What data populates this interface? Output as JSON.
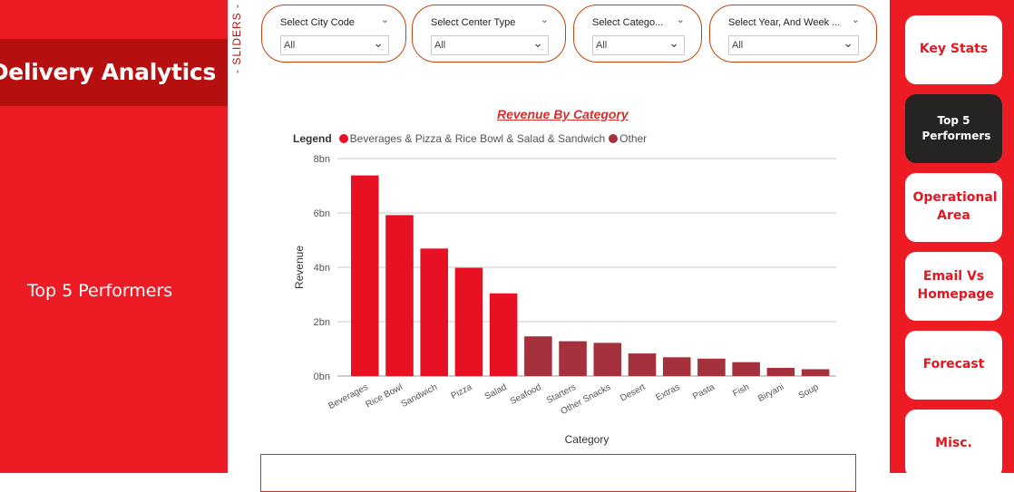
{
  "left_panel": {
    "app_title": "od Delivery Analytics",
    "page_label": "Top 5 Performers"
  },
  "sliders_label": "- SLIDERS -",
  "slicers": [
    {
      "label": "Select City Code",
      "value": "All"
    },
    {
      "label": "Select Center Type",
      "value": "All"
    },
    {
      "label": "Select Catego...",
      "value": "All"
    },
    {
      "label": "Select Year, And Week ...",
      "value": "All"
    }
  ],
  "nav": [
    {
      "label": "Key Stats",
      "active": false
    },
    {
      "label": "Top 5 Performers",
      "active": true
    },
    {
      "label": "Operational Area",
      "active": false
    },
    {
      "label": "Email Vs Homepage",
      "active": false
    },
    {
      "label": "Forecast",
      "active": false
    },
    {
      "label": "Misc.",
      "active": false
    }
  ],
  "colors": {
    "primary_red": "#ed1c24",
    "dark_red": "#b5100f",
    "other_series": "#a4313c",
    "top_series": "#e81123",
    "active_nav": "#252423"
  },
  "chart_data": {
    "type": "bar",
    "title": "Revenue By Category",
    "xlabel": "Category",
    "ylabel": "Revenue",
    "legend_title": "Legend",
    "legend_position": "top-left",
    "ylim": [
      0,
      8000000000
    ],
    "yticks": [
      0,
      2000000000,
      4000000000,
      6000000000,
      8000000000
    ],
    "ytick_labels": [
      "0bn",
      "2bn",
      "4bn",
      "6bn",
      "8bn"
    ],
    "grid": true,
    "categories": [
      "Beverages",
      "Rice Bowl",
      "Sandwich",
      "Pizza",
      "Salad",
      "Seafood",
      "Starters",
      "Other Snacks",
      "Desert",
      "Extras",
      "Pasta",
      "Fish",
      "Biryani",
      "Soup"
    ],
    "series": [
      {
        "name": "Beverages & Pizza & Rice Bowl & Salad & Sandwich",
        "color": "#e81123",
        "values": [
          7380000000,
          5920000000,
          4690000000,
          3980000000,
          3040000000,
          null,
          null,
          null,
          null,
          null,
          null,
          null,
          null,
          null
        ]
      },
      {
        "name": "Other",
        "color": "#a4313c",
        "values": [
          null,
          null,
          null,
          null,
          null,
          1460000000,
          1280000000,
          1220000000,
          830000000,
          690000000,
          640000000,
          510000000,
          300000000,
          250000000
        ]
      }
    ]
  }
}
